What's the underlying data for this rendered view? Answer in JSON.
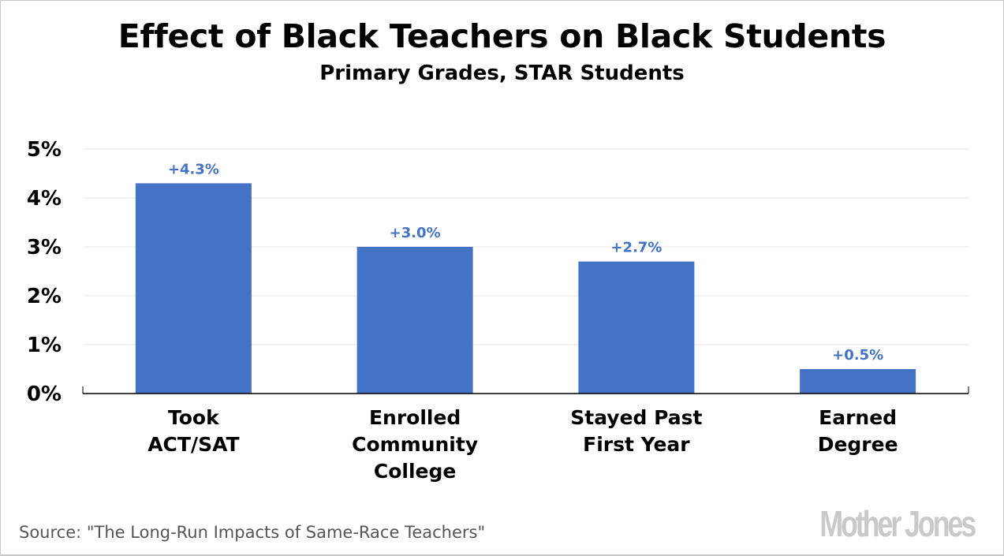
{
  "chart_data": {
    "type": "bar",
    "title": "Effect of Black Teachers on Black Students",
    "subtitle": "Primary Grades, STAR Students",
    "categories": [
      [
        "Took",
        "ACT/SAT"
      ],
      [
        "Enrolled",
        "Community",
        "College"
      ],
      [
        "Stayed Past",
        "First Year"
      ],
      [
        "Earned",
        "Degree"
      ]
    ],
    "values": [
      4.3,
      3.0,
      2.7,
      0.5
    ],
    "data_labels": [
      "+4.3%",
      "+3.0%",
      "+2.7%",
      "+0.5%"
    ],
    "yticks": [
      0,
      1,
      2,
      3,
      4,
      5
    ],
    "ytick_labels": [
      "0%",
      "1%",
      "2%",
      "3%",
      "4%",
      "5%"
    ],
    "ylim": [
      0,
      5
    ],
    "xlabel": "",
    "ylabel": "",
    "grid": true,
    "bar_color": "#4472C4",
    "label_color": "#4472C4"
  },
  "source": "Source: \"The Long-Run Impacts of Same-Race Teachers\"",
  "logo": "Mother Jones"
}
